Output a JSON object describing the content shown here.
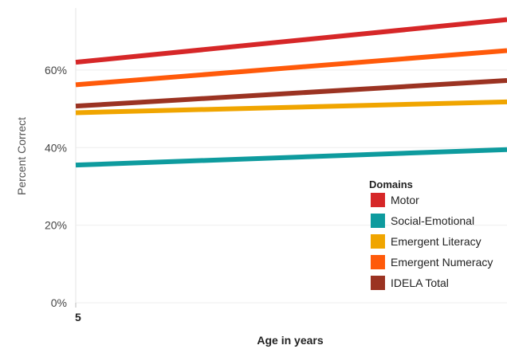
{
  "chart_data": {
    "type": "line",
    "xlabel": "Age in years",
    "ylabel": "Percent Correct",
    "x_tick_labels": [
      "5"
    ],
    "y_tick_labels": [
      "0%",
      "20%",
      "40%",
      "60%"
    ],
    "ylim": [
      0,
      76
    ],
    "x": [
      "start",
      "end"
    ],
    "grid": true,
    "legend": {
      "title": "Domains",
      "placement": "bottom-right"
    },
    "series": [
      {
        "name": "Motor",
        "color": "#d62728",
        "values": [
          62,
          73
        ]
      },
      {
        "name": "Social-Emotional",
        "color": "#0e9b9e",
        "values": [
          35.5,
          39.5
        ]
      },
      {
        "name": "Emergent Literacy",
        "color": "#f0a500",
        "values": [
          49,
          51.8
        ]
      },
      {
        "name": "Emergent Numeracy",
        "color": "#ff5a0a",
        "values": [
          56.2,
          65
        ]
      },
      {
        "name": "IDELA Total",
        "color": "#9b3322",
        "values": [
          50.7,
          57.3
        ]
      }
    ]
  }
}
